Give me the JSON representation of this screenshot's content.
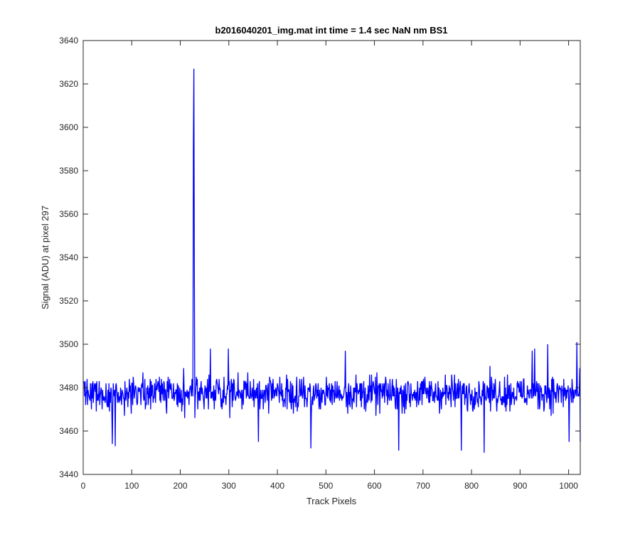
{
  "chart_data": {
    "type": "line",
    "title": "b2016040201_img.mat int time = 1.4 sec  NaN nm BS1",
    "xlabel": "Track Pixels",
    "ylabel": "Signal (ADU) at pixel 297",
    "xlim": [
      0,
      1024
    ],
    "ylim": [
      3440,
      3640
    ],
    "xticks": [
      0,
      100,
      200,
      300,
      400,
      500,
      600,
      700,
      800,
      900,
      1000
    ],
    "yticks": [
      3440,
      3460,
      3480,
      3500,
      3520,
      3540,
      3560,
      3580,
      3600,
      3620,
      3640
    ],
    "grid": false,
    "series": [
      {
        "color": "#0000ff",
        "x_start": 1,
        "x_step": 1,
        "noise": {
          "mean": 3477.5,
          "typical_range": [
            3465,
            3490
          ],
          "min": 3450,
          "max": 3501
        },
        "spike": {
          "x": 228,
          "y": 3627
        },
        "notable_points": [
          {
            "x": 1,
            "y": 3483
          },
          {
            "x": 60,
            "y": 3454
          },
          {
            "x": 66,
            "y": 3453
          },
          {
            "x": 209,
            "y": 3466
          },
          {
            "x": 227,
            "y": 3592
          },
          {
            "x": 228,
            "y": 3627
          },
          {
            "x": 229,
            "y": 3533
          },
          {
            "x": 230,
            "y": 3466
          },
          {
            "x": 262,
            "y": 3498
          },
          {
            "x": 299,
            "y": 3498
          },
          {
            "x": 361,
            "y": 3455
          },
          {
            "x": 469,
            "y": 3452
          },
          {
            "x": 540,
            "y": 3497
          },
          {
            "x": 650,
            "y": 3451
          },
          {
            "x": 779,
            "y": 3451
          },
          {
            "x": 826,
            "y": 3450
          },
          {
            "x": 925,
            "y": 3497
          },
          {
            "x": 930,
            "y": 3498
          },
          {
            "x": 957,
            "y": 3500
          },
          {
            "x": 1001,
            "y": 3455
          },
          {
            "x": 1017,
            "y": 3501
          },
          {
            "x": 1024,
            "y": 3455
          }
        ]
      }
    ]
  }
}
